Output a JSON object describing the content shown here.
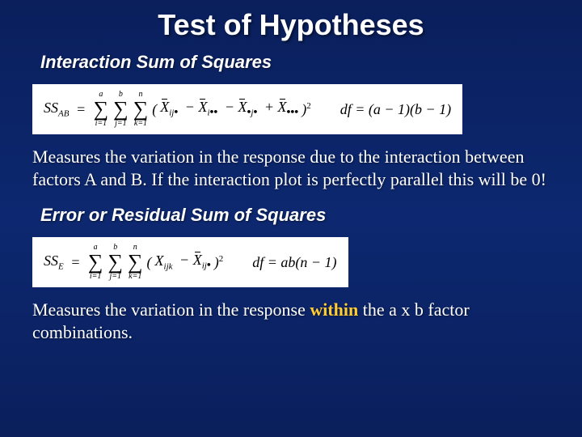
{
  "slide": {
    "title": "Test of Hypotheses",
    "background_gradient": [
      "#0a1f5c",
      "#0d2870",
      "#0a1f5c"
    ],
    "text_color": "#ffffff",
    "highlight_color": "#ffcc33",
    "formula_bg": "#ffffff",
    "formula_color": "#000000",
    "section1": {
      "heading": "Interaction Sum of Squares",
      "formula": {
        "lhs": "SS",
        "lhs_sub": "AB",
        "sums": [
          {
            "lower": "i=1",
            "upper": "a"
          },
          {
            "lower": "j=1",
            "upper": "b"
          },
          {
            "lower": "k=1",
            "upper": "n"
          }
        ],
        "terms": [
          "X̄_ij•",
          "− X̄_i••",
          "− X̄_•j•",
          "+ X̄_•••"
        ],
        "power": "2",
        "df_label": "df",
        "df_expr": "= (a − 1)(b − 1)"
      },
      "body": "Measures the variation in the response due to the interaction between factors A and B.  If the interaction plot is perfectly parallel this will be 0!"
    },
    "section2": {
      "heading": "Error or Residual Sum of Squares",
      "formula": {
        "lhs": "SS",
        "lhs_sub": "E",
        "sums": [
          {
            "lower": "i=1",
            "upper": "a"
          },
          {
            "lower": "j=1",
            "upper": "b"
          },
          {
            "lower": "k=1",
            "upper": "n"
          }
        ],
        "term1": "X_ijk",
        "term2": "− X̄_ij•",
        "power": "2",
        "df_label": "df",
        "df_expr": "= ab(n − 1)"
      },
      "body_pre": "Measures the variation in the response ",
      "body_hl": "within",
      "body_post": " the a x b factor combinations."
    }
  }
}
